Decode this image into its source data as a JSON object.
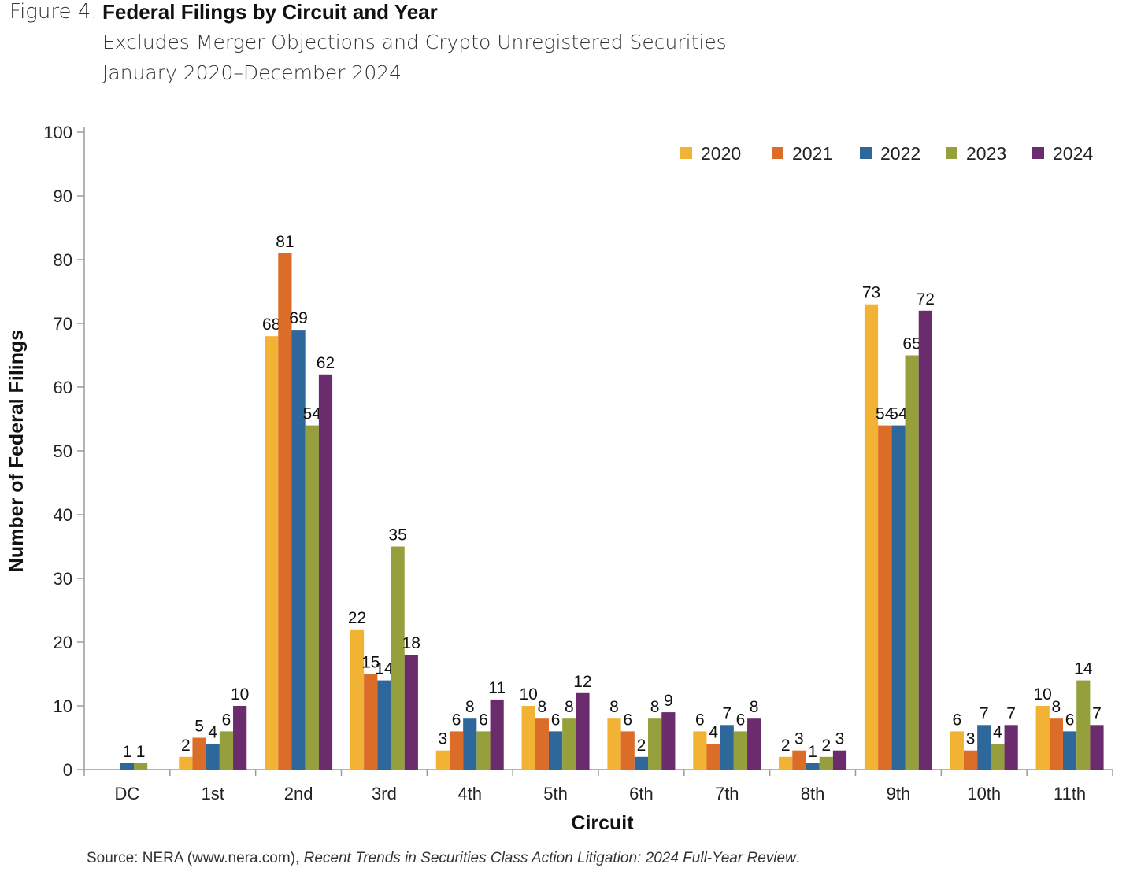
{
  "figure": {
    "label": "Figure 4.",
    "title": "Federal Filings by Circuit and Year",
    "subtitle1": "Excludes Merger Objections and Crypto Unregistered Securities",
    "subtitle2": "January 2020–December 2024"
  },
  "source": {
    "prefix": "Source: NERA (www.nera.com), ",
    "italic": "Recent Trends in Securities Class Action Litigation: 2024 Full-Year Review",
    "suffix": "."
  },
  "colors": {
    "2020": "#F2B233",
    "2021": "#DC6D29",
    "2022": "#2E6799",
    "2023": "#95A03C",
    "2024": "#6A2C6D",
    "axis": "#9a9a9a"
  },
  "chart_data": {
    "type": "bar",
    "xlabel": "Circuit",
    "ylabel": "Number of Federal Filings",
    "ylim": [
      0,
      100
    ],
    "yticks": [
      0,
      10,
      20,
      30,
      40,
      50,
      60,
      70,
      80,
      90,
      100
    ],
    "legend_position": "top-right",
    "categories": [
      "DC",
      "1st",
      "2nd",
      "3rd",
      "4th",
      "5th",
      "6th",
      "7th",
      "8th",
      "9th",
      "10th",
      "11th"
    ],
    "series": [
      {
        "name": "2020",
        "values": [
          0,
          2,
          68,
          22,
          3,
          10,
          8,
          6,
          2,
          73,
          6,
          10
        ]
      },
      {
        "name": "2021",
        "values": [
          0,
          5,
          81,
          15,
          6,
          8,
          6,
          4,
          3,
          54,
          3,
          8
        ]
      },
      {
        "name": "2022",
        "values": [
          1,
          4,
          69,
          14,
          8,
          6,
          2,
          7,
          1,
          54,
          7,
          6
        ]
      },
      {
        "name": "2023",
        "values": [
          1,
          6,
          54,
          35,
          6,
          8,
          8,
          6,
          2,
          65,
          4,
          14
        ]
      },
      {
        "name": "2024",
        "values": [
          0,
          10,
          62,
          18,
          11,
          12,
          9,
          8,
          3,
          72,
          7,
          7
        ]
      }
    ]
  }
}
